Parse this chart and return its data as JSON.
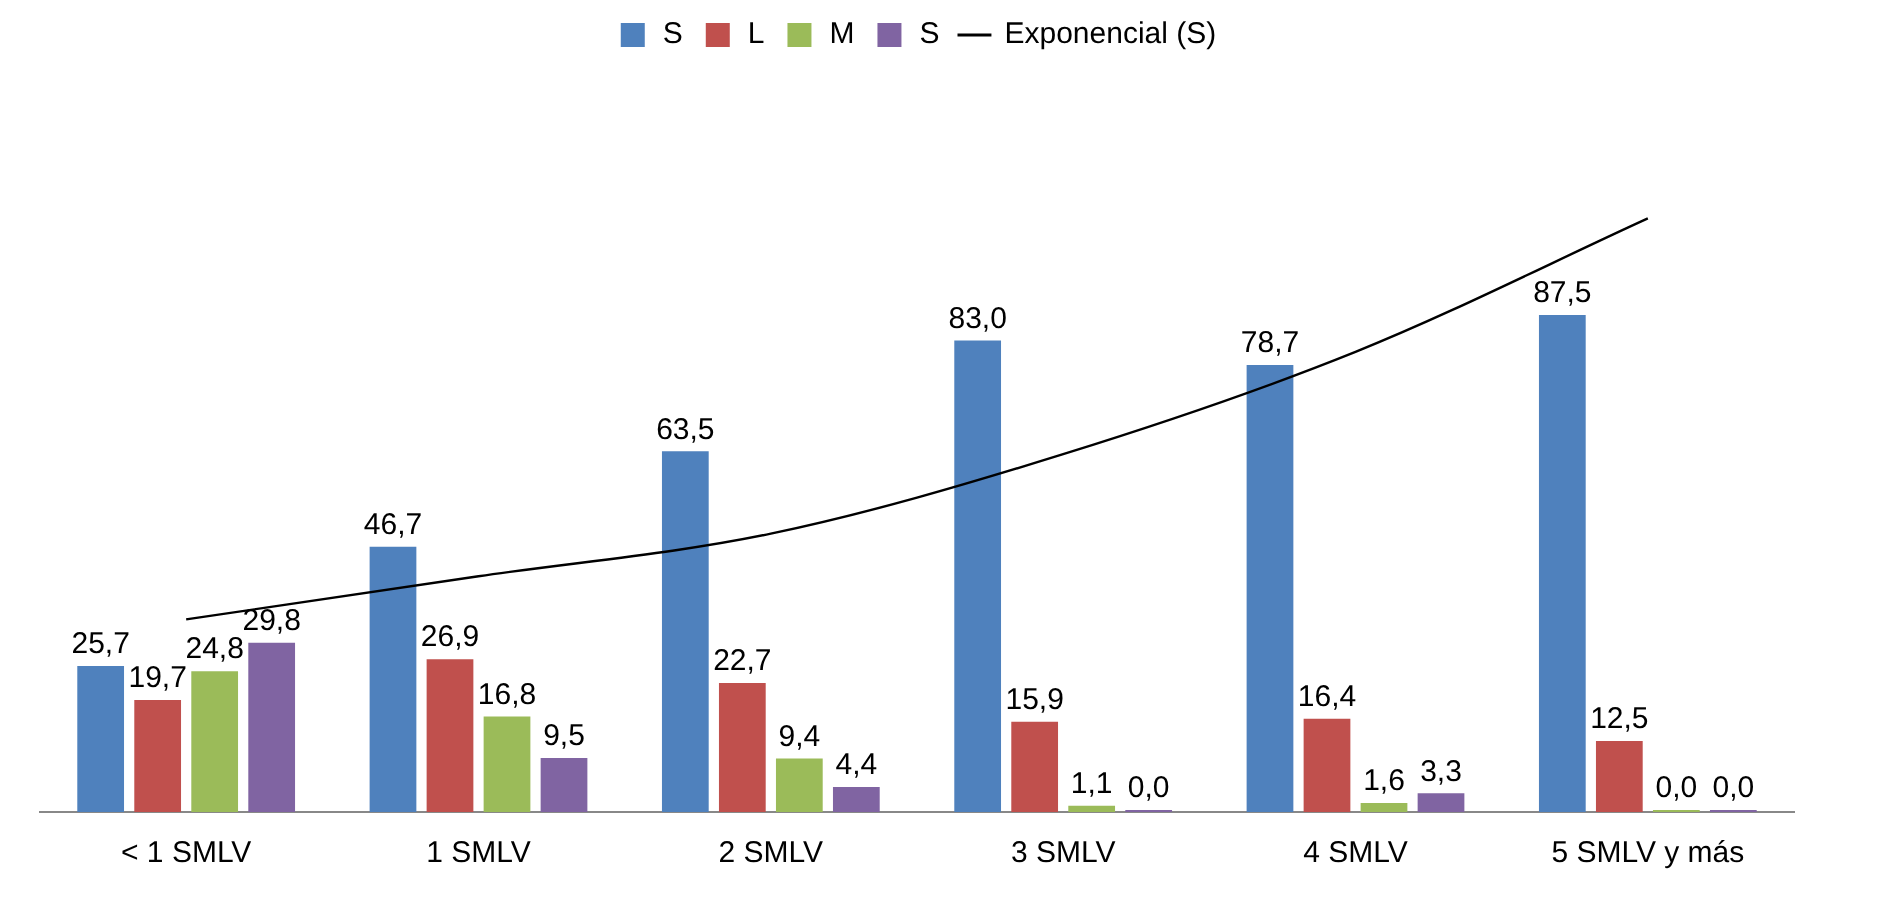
{
  "chart_data": {
    "type": "bar",
    "categories": [
      "< 1 SMLV",
      "1 SMLV",
      "2 SMLV",
      "3 SMLV",
      "4 SMLV",
      "5 SMLV y más"
    ],
    "series": [
      {
        "name": "S",
        "color": "#4f81bd",
        "values": [
          25.7,
          46.7,
          63.5,
          83.0,
          78.7,
          87.5
        ],
        "value_labels": [
          "25,7",
          "46,7",
          "63,5",
          "83,0",
          "78,7",
          "87,5"
        ]
      },
      {
        "name": "L",
        "color": "#c0504d",
        "values": [
          19.7,
          26.9,
          22.7,
          15.9,
          16.4,
          12.5
        ],
        "value_labels": [
          "19,7",
          "26,9",
          "22,7",
          "15,9",
          "16,4",
          "12,5"
        ]
      },
      {
        "name": "M",
        "color": "#9bbb59",
        "values": [
          24.8,
          16.8,
          9.4,
          1.1,
          1.6,
          0.0
        ],
        "value_labels": [
          "24,8",
          "16,8",
          "9,4",
          "1,1",
          "1,6",
          "0,0"
        ]
      },
      {
        "name": "S",
        "color": "#8064a2",
        "values": [
          29.8,
          9.5,
          4.4,
          0.0,
          3.3,
          0.0
        ],
        "value_labels": [
          "29,8",
          "9,5",
          "4,4",
          "0,0",
          "3,3",
          "0,0"
        ]
      },
      {
        "name": "Exponencial (S)",
        "type": "line",
        "color": "#000000",
        "values": [
          33.9,
          41.5,
          49,
          63,
          81,
          104.5
        ]
      }
    ],
    "legend": "top",
    "grid": false,
    "tick_labels": "x",
    "marker": "none"
  }
}
